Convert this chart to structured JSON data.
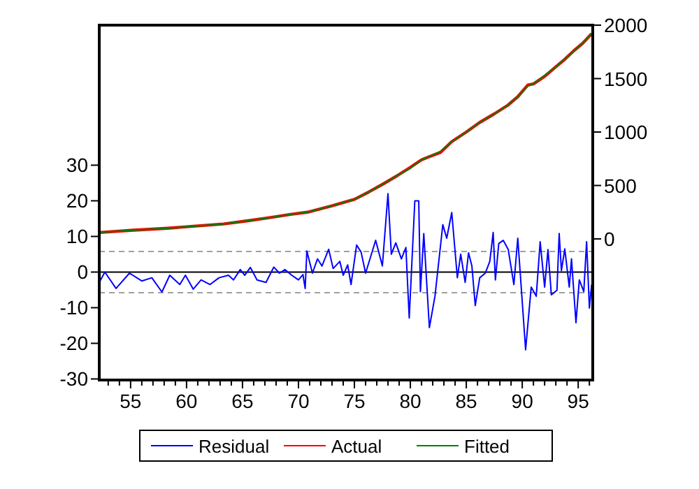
{
  "chart_data": {
    "type": "line",
    "xlim": [
      52.2,
      96.3
    ],
    "xticks": [
      {
        "value": 53,
        "label": null
      },
      {
        "value": 54,
        "label": null
      },
      55,
      {
        "value": 56,
        "label": null
      },
      {
        "value": 57,
        "label": null
      },
      {
        "value": 58,
        "label": null
      },
      {
        "value": 59,
        "label": null
      },
      60,
      {
        "value": 61,
        "label": null
      },
      {
        "value": 62,
        "label": null
      },
      {
        "value": 63,
        "label": null
      },
      {
        "value": 64,
        "label": null
      },
      65,
      {
        "value": 66,
        "label": null
      },
      {
        "value": 67,
        "label": null
      },
      {
        "value": 68,
        "label": null
      },
      {
        "value": 69,
        "label": null
      },
      70,
      {
        "value": 71,
        "label": null
      },
      {
        "value": 72,
        "label": null
      },
      {
        "value": 73,
        "label": null
      },
      {
        "value": 74,
        "label": null
      },
      75,
      {
        "value": 76,
        "label": null
      },
      {
        "value": 77,
        "label": null
      },
      {
        "value": 78,
        "label": null
      },
      {
        "value": 79,
        "label": null
      },
      80,
      {
        "value": 81,
        "label": null
      },
      {
        "value": 82,
        "label": null
      },
      {
        "value": 83,
        "label": null
      },
      {
        "value": 84,
        "label": null
      },
      85,
      {
        "value": 86,
        "label": null
      },
      {
        "value": 87,
        "label": null
      },
      {
        "value": 88,
        "label": null
      },
      {
        "value": 89,
        "label": null
      },
      90,
      {
        "value": 91,
        "label": null
      },
      {
        "value": 92,
        "label": null
      },
      {
        "value": 93,
        "label": null
      },
      {
        "value": 94,
        "label": null
      },
      95,
      {
        "value": 96,
        "label": null
      }
    ],
    "ylim": [
      -30.3,
      69.3
    ],
    "yticks": [
      -30,
      -20,
      -10,
      0,
      10,
      20,
      30
    ],
    "y2lim": [
      -1320,
      2000
    ],
    "y2ticks": [
      0,
      500,
      1000,
      1500,
      2000
    ],
    "grid": false,
    "legend": "bottom",
    "line_style": "solid",
    "marker": "none",
    "ref_lines": [
      {
        "axis": "y",
        "value": 0,
        "color": "#000000",
        "line_style": "solid"
      },
      {
        "axis": "y",
        "value": 5.8,
        "color": "#a0a0a0",
        "line_style": "dashed"
      },
      {
        "axis": "y",
        "value": -5.8,
        "color": "#a0a0a0",
        "line_style": "dashed"
      }
    ],
    "series": [
      {
        "name": "Residual",
        "color": "#0000ff",
        "x": [
          52.2,
          52.7,
          53.7,
          54.9,
          56.0,
          56.9,
          57.8,
          58.5,
          59.4,
          59.9,
          60.6,
          61.3,
          62.1,
          62.9,
          63.75,
          64.2,
          64.8,
          65.2,
          65.7,
          66.3,
          67.1,
          67.8,
          68.3,
          68.8,
          69.4,
          70.0,
          70.4,
          70.6,
          70.75,
          71.25,
          71.7,
          72.1,
          72.7,
          73.1,
          73.7,
          74.0,
          74.4,
          74.7,
          75.2,
          75.6,
          76.0,
          76.9,
          77.5,
          78.0,
          78.3,
          78.7,
          79.2,
          79.6,
          79.9,
          80.4,
          80.75,
          80.9,
          81.2,
          81.7,
          82.2,
          82.9,
          83.25,
          83.7,
          84.2,
          84.5,
          84.9,
          85.2,
          85.5,
          85.8,
          86.2,
          86.7,
          87.1,
          87.4,
          87.6,
          87.9,
          88.3,
          88.75,
          89.25,
          89.6,
          90.3,
          90.8,
          91.25,
          91.6,
          92.0,
          92.3,
          92.6,
          93.1,
          93.3,
          93.5,
          93.8,
          94.2,
          94.4,
          94.8,
          95.1,
          95.5,
          95.75,
          96.0,
          96.2
        ],
        "values": [
          -2.9,
          0,
          -4.6,
          -0.3,
          -2.5,
          -1.6,
          -5.6,
          -0.9,
          -3.5,
          -0.9,
          -4.8,
          -2.2,
          -3.5,
          -1.6,
          -0.9,
          -2.2,
          0.7,
          -0.9,
          1.3,
          -2.2,
          -2.9,
          1.4,
          -0.3,
          0.7,
          -0.9,
          -2.2,
          -0.7,
          -4.6,
          5.9,
          -0.3,
          3.7,
          1.7,
          6.4,
          1.0,
          3.0,
          -0.9,
          2.0,
          -3.5,
          7.6,
          5.6,
          -0.3,
          8.9,
          1.7,
          22,
          5.0,
          8.2,
          3.7,
          6.9,
          -12.9,
          20,
          20,
          -5.5,
          10.8,
          -15.6,
          -6.8,
          13.3,
          9.5,
          16.7,
          -1.6,
          5.0,
          -2.9,
          5.4,
          1.7,
          -9.4,
          -1.6,
          -0.3,
          3.0,
          11.1,
          -2.2,
          8.0,
          8.9,
          6.3,
          -3.5,
          9.5,
          -21.8,
          -4.2,
          -6.8,
          8.5,
          -4.2,
          6.3,
          -6.4,
          -5.1,
          10.8,
          0.4,
          6.5,
          -4.2,
          3.7,
          -14.2,
          -2.2,
          -5.5,
          8.5,
          -10.1,
          -3.5
        ]
      },
      {
        "name": "Actual",
        "color": "#ff0000",
        "axis": "y2",
        "x": [
          52.2,
          55,
          58.3,
          60.8,
          63.3,
          65.5,
          67.5,
          69.3,
          70.8,
          73,
          75.0,
          76.3,
          77.5,
          78.8,
          80.0,
          81.0,
          81.7,
          82.7,
          83.7,
          85,
          86.2,
          87.5,
          88.7,
          89.6,
          90.5,
          91,
          92,
          93.0,
          93.8,
          94.6,
          95.4,
          96.2
        ],
        "values": [
          60,
          80,
          100,
          120,
          140,
          170,
          200,
          230,
          250,
          310,
          370,
          440,
          510,
          590,
          670,
          740,
          770,
          810,
          910,
          1000,
          1090,
          1170,
          1250,
          1330,
          1440,
          1450,
          1520,
          1610,
          1680,
          1760,
          1830,
          1920
        ]
      },
      {
        "name": "Fitted",
        "color": "#008000",
        "axis": "y2",
        "x": [
          52.2,
          55,
          58.3,
          60.8,
          63.3,
          65.5,
          67.5,
          69.3,
          70.8,
          73,
          75.0,
          76.3,
          77.5,
          78.8,
          80.0,
          81.0,
          81.7,
          82.7,
          83.7,
          85,
          86.2,
          87.5,
          88.7,
          89.6,
          90.5,
          91,
          92,
          93.0,
          93.8,
          94.6,
          95.4,
          96.2
        ],
        "values": [
          60,
          80,
          100,
          120,
          140,
          170,
          200,
          230,
          250,
          310,
          370,
          440,
          510,
          590,
          660,
          740,
          770,
          820,
          910,
          1000,
          1090,
          1170,
          1250,
          1330,
          1430,
          1450,
          1530,
          1610,
          1680,
          1760,
          1830,
          1920
        ]
      }
    ]
  }
}
